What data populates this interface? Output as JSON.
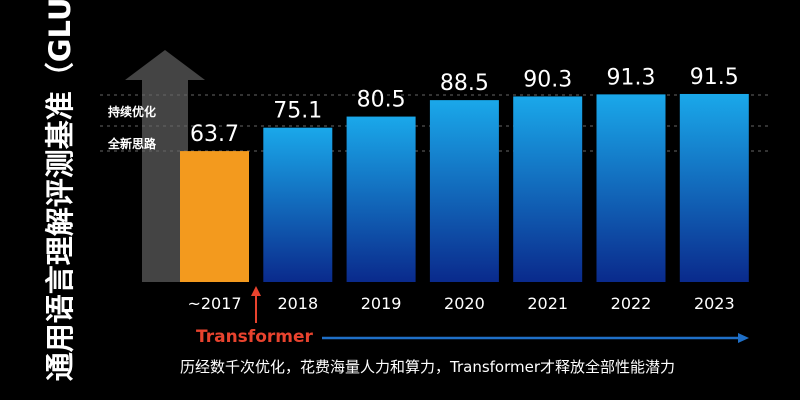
{
  "chart_data": {
    "type": "bar",
    "ylabel": "通用语言理解评测基准（GLUE）",
    "categories": [
      "~2017",
      "2018",
      "2019",
      "2020",
      "2021",
      "2022",
      "2023"
    ],
    "values": [
      63.7,
      75.1,
      80.5,
      88.5,
      90.3,
      91.3,
      91.5
    ],
    "colors": {
      "highlight": "#f39a1e",
      "bar_top": "#1aa8ea",
      "bar_bottom": "#0a2a8c",
      "arrow": "#444444",
      "transformer": "#e8432e",
      "timeline": "#1f6fc7"
    },
    "annotations": {
      "note1": "持续优化",
      "note2": "全新思路",
      "transformer": "Transformer",
      "caption": "历经数千次优化，花费海量人力和算力，Transformer才释放全部性能潜力"
    },
    "grid": false
  }
}
